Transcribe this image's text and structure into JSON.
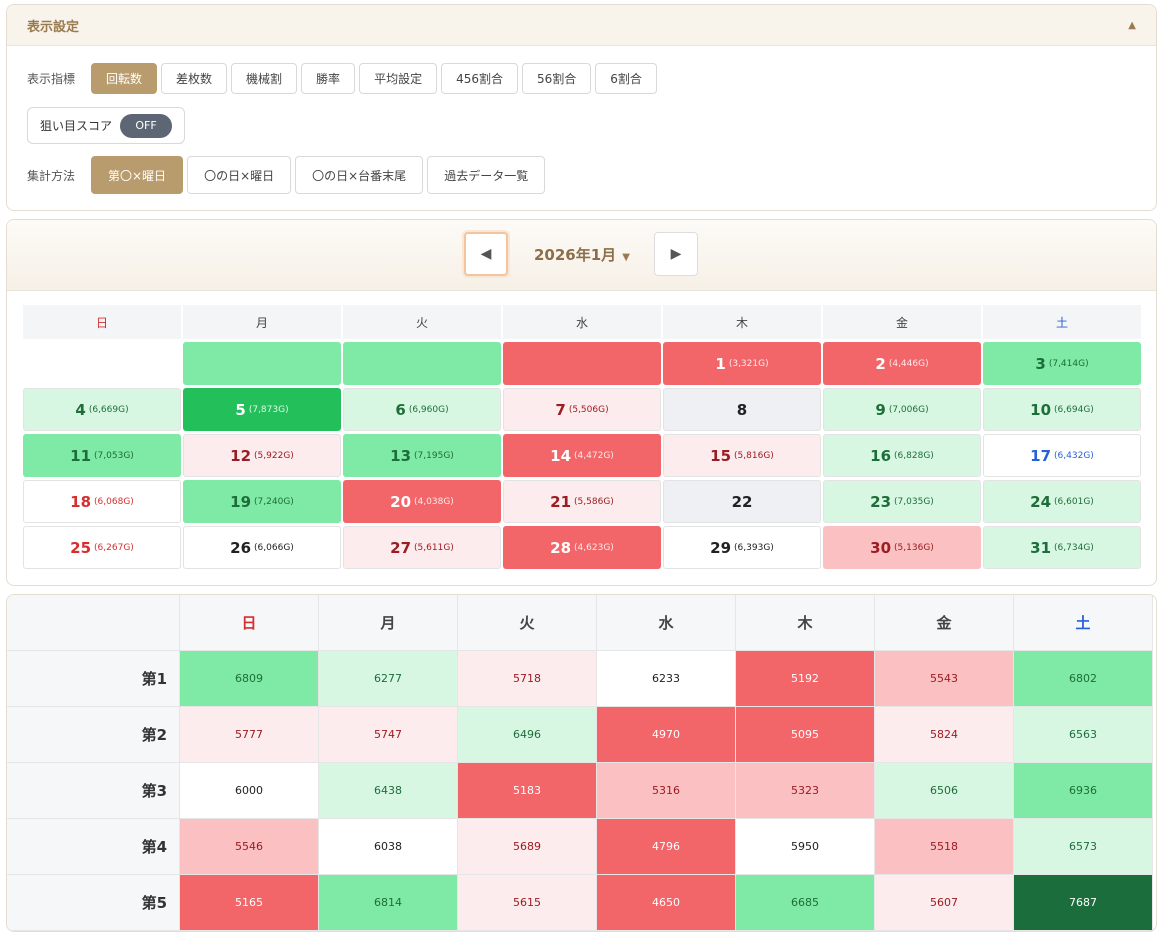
{
  "settings": {
    "title": "表示設定",
    "collapse_icon": "▲",
    "metric_label": "表示指標",
    "metric_options": [
      "回転数",
      "差枚数",
      "機械割",
      "勝率",
      "平均設定",
      "456割合",
      "56割合",
      "6割合"
    ],
    "metric_selected": "回転数",
    "score_label": "狙い目スコア",
    "score_toggle": "OFF",
    "aggregation_label": "集計方法",
    "aggregation_options": [
      "第〇×曜日",
      "〇の日×曜日",
      "〇の日×台番末尾",
      "過去データ一覧"
    ],
    "aggregation_selected": "第〇×曜日"
  },
  "calendar": {
    "month_label": "2026年1月",
    "month_caret": "▼",
    "prev_icon": "◀",
    "next_icon": "▶",
    "weekdays": [
      "日",
      "月",
      "火",
      "水",
      "木",
      "金",
      "土"
    ],
    "weeks": [
      [
        {
          "day": "",
          "g": "",
          "level": "g2"
        },
        {
          "day": "",
          "g": "",
          "level": "g2"
        },
        {
          "day": "",
          "g": "",
          "level": "g2"
        },
        {
          "day": "",
          "g": "",
          "level": "r2"
        },
        {
          "day": "1",
          "g": "(3,321G)",
          "level": "r2"
        },
        {
          "day": "2",
          "g": "(4,446G)",
          "level": "r2"
        },
        {
          "day": "3",
          "g": "(7,414G)",
          "level": "g2"
        }
      ],
      [
        {
          "day": "4",
          "g": "(6,669G)",
          "level": "g1"
        },
        {
          "day": "5",
          "g": "(7,873G)",
          "level": "g3"
        },
        {
          "day": "6",
          "g": "(6,960G)",
          "level": "g1"
        },
        {
          "day": "7",
          "g": "(5,506G)",
          "level": "r0"
        },
        {
          "day": "8",
          "g": "",
          "level": "none"
        },
        {
          "day": "9",
          "g": "(7,006G)",
          "level": "g1"
        },
        {
          "day": "10",
          "g": "(6,694G)",
          "level": "g1"
        }
      ],
      [
        {
          "day": "11",
          "g": "(7,053G)",
          "level": "g2"
        },
        {
          "day": "12",
          "g": "(5,922G)",
          "level": "r0"
        },
        {
          "day": "13",
          "g": "(7,195G)",
          "level": "g2"
        },
        {
          "day": "14",
          "g": "(4,472G)",
          "level": "r2"
        },
        {
          "day": "15",
          "g": "(5,816G)",
          "level": "r0"
        },
        {
          "day": "16",
          "g": "(6,828G)",
          "level": "g1"
        },
        {
          "day": "17",
          "g": "(6,432G)",
          "level": "w"
        }
      ],
      [
        {
          "day": "18",
          "g": "(6,068G)",
          "level": "w"
        },
        {
          "day": "19",
          "g": "(7,240G)",
          "level": "g2"
        },
        {
          "day": "20",
          "g": "(4,038G)",
          "level": "r2"
        },
        {
          "day": "21",
          "g": "(5,586G)",
          "level": "r0"
        },
        {
          "day": "22",
          "g": "",
          "level": "none"
        },
        {
          "day": "23",
          "g": "(7,035G)",
          "level": "g1"
        },
        {
          "day": "24",
          "g": "(6,601G)",
          "level": "g1"
        }
      ],
      [
        {
          "day": "25",
          "g": "(6,267G)",
          "level": "w"
        },
        {
          "day": "26",
          "g": "(6,066G)",
          "level": "w"
        },
        {
          "day": "27",
          "g": "(5,611G)",
          "level": "r0"
        },
        {
          "day": "28",
          "g": "(4,623G)",
          "level": "r2"
        },
        {
          "day": "29",
          "g": "(6,393G)",
          "level": "w"
        },
        {
          "day": "30",
          "g": "(5,136G)",
          "level": "r1"
        },
        {
          "day": "31",
          "g": "(6,734G)",
          "level": "g1"
        }
      ]
    ]
  },
  "weekly_table": {
    "weekdays": [
      "日",
      "月",
      "火",
      "水",
      "木",
      "金",
      "土"
    ],
    "rows": [
      {
        "label": "第1",
        "values": [
          "6809",
          "6277",
          "5718",
          "6233",
          "5192",
          "5543",
          "6802"
        ],
        "levels": [
          "g2",
          "g1",
          "r0",
          "w",
          "r2",
          "r1",
          "g2"
        ]
      },
      {
        "label": "第2",
        "values": [
          "5777",
          "5747",
          "6496",
          "4970",
          "5095",
          "5824",
          "6563"
        ],
        "levels": [
          "r0",
          "r0",
          "g1",
          "r2",
          "r2",
          "r0",
          "g1"
        ]
      },
      {
        "label": "第3",
        "values": [
          "6000",
          "6438",
          "5183",
          "5316",
          "5323",
          "6506",
          "6936"
        ],
        "levels": [
          "w",
          "g1",
          "r2",
          "r1",
          "r1",
          "g1",
          "g2"
        ]
      },
      {
        "label": "第4",
        "values": [
          "5546",
          "6038",
          "5689",
          "4796",
          "5950",
          "5518",
          "6573"
        ],
        "levels": [
          "r1",
          "w",
          "r0",
          "r2",
          "w",
          "r1",
          "g1"
        ]
      },
      {
        "label": "第5",
        "values": [
          "5165",
          "6814",
          "5615",
          "4650",
          "6685",
          "5607",
          "7687"
        ],
        "levels": [
          "r2",
          "g2",
          "r0",
          "r2",
          "g2",
          "r0",
          "g4"
        ]
      }
    ]
  },
  "colors": {
    "g1": "#d8f7e3",
    "g2": "#7fe9a6",
    "g3": "#22bf5b",
    "g4": "#1b6e3b",
    "r0": "#fdeced",
    "r1": "#fbc0c2",
    "r2": "#f26568",
    "w": "#ffffff",
    "none": "#eff0f3",
    "accent": "#b99c6e"
  }
}
